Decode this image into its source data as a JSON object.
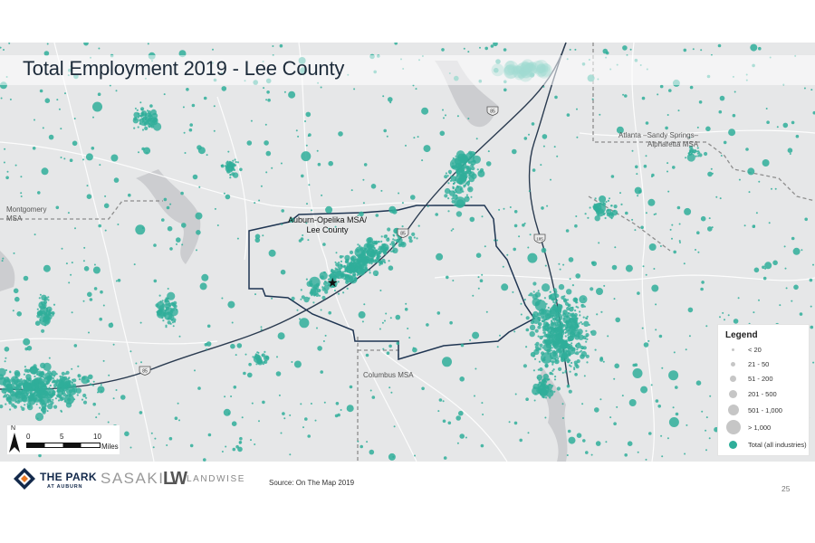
{
  "title": "Total Employment 2019 - Lee County",
  "map": {
    "labels": {
      "montgomery": [
        "Montgomery",
        "MSA"
      ],
      "atlanta": [
        "Atlanta –Sandy Springs–",
        "Alpharetta MSA"
      ],
      "columbus": "Columbus MSA",
      "auburn_opelika": [
        "Auburn-Opelika MSA/",
        "Lee County"
      ]
    },
    "highway_shield_label": "85",
    "highway_shield_label_2": "185",
    "colors": {
      "background": "#e6e7e8",
      "points": "#2fae9a",
      "county_boundary": "#1f3552",
      "water": "#c9cacd",
      "roads": "#ffffff",
      "msa_boundary": "#8d8d8d"
    },
    "marker_icon": "star-icon"
  },
  "legend": {
    "title": "Legend",
    "items": [
      {
        "label": "< 20"
      },
      {
        "label": "21 - 50"
      },
      {
        "label": "51 - 200"
      },
      {
        "label": "201 - 500"
      },
      {
        "label": "501 - 1,000"
      },
      {
        "label": "> 1,000"
      },
      {
        "label": "Total (all industries)"
      }
    ]
  },
  "scale_bar": {
    "north": "N",
    "ticks": [
      "0",
      "5",
      "10"
    ],
    "unit": "Miles"
  },
  "footer": {
    "park_line1": "THE PARK",
    "park_line2": "AT AUBURN",
    "sasaki": "SASAKI",
    "landwise_mark": "LW",
    "landwise": "LANDWISE",
    "source": "Source: On The Map 2019",
    "page_number": "25"
  }
}
